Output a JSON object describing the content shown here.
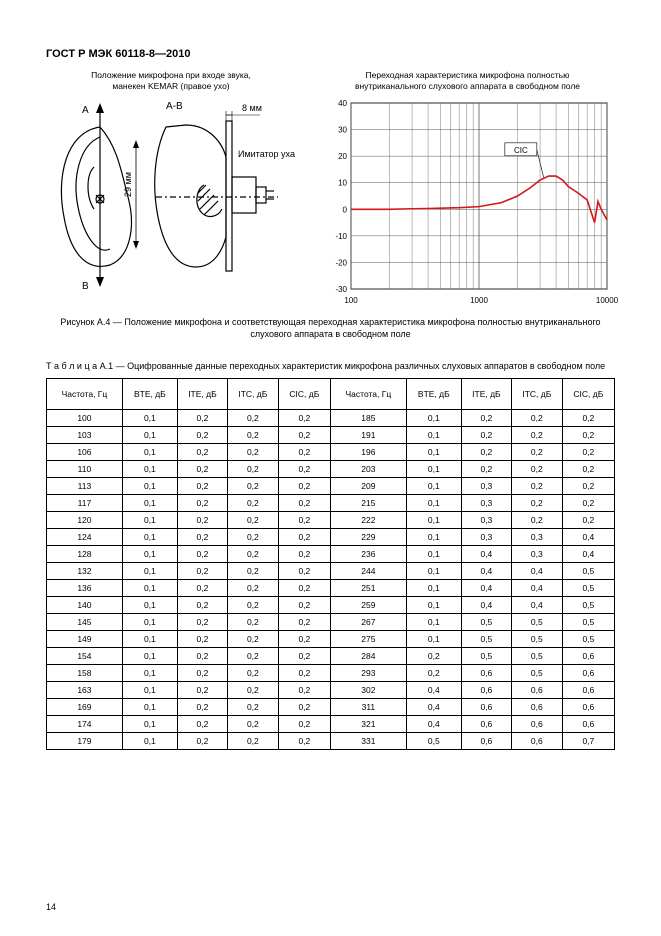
{
  "doc_title": "ГОСТ Р МЭК 60118-8—2010",
  "page_number": "14",
  "left_fig": {
    "caption_line1": "Положение микрофона при входе звука,",
    "caption_line2": "манекен KEMAR (правое ухо)",
    "label_A": "A",
    "label_B": "B",
    "label_AB": "A-B",
    "label_8mm": "8 мм",
    "label_29mm": "29 мм",
    "label_imitator": "Имитатор уха"
  },
  "right_fig": {
    "caption_line1": "Переходная характеристика микрофона полностью",
    "caption_line2": "внутриканального слухового аппарата в свободном поле",
    "cic_label": "CIC",
    "x_min": 100,
    "x_max": 10000,
    "y_min": -30,
    "y_max": 40,
    "y_ticks": [
      40,
      30,
      20,
      10,
      0,
      -10,
      -20,
      -30
    ],
    "x_ticks": [
      100,
      1000,
      10000
    ],
    "grid_color": "#555555",
    "series_color": "#d31717",
    "series": [
      [
        100,
        0
      ],
      [
        150,
        0
      ],
      [
        200,
        0
      ],
      [
        300,
        0.2
      ],
      [
        400,
        0.3
      ],
      [
        500,
        0.4
      ],
      [
        700,
        0.6
      ],
      [
        1000,
        1
      ],
      [
        1500,
        2.5
      ],
      [
        2000,
        5
      ],
      [
        2500,
        8
      ],
      [
        3000,
        11
      ],
      [
        3500,
        12.5
      ],
      [
        4000,
        12.5
      ],
      [
        4500,
        11
      ],
      [
        5000,
        8.5
      ],
      [
        6000,
        6
      ],
      [
        7000,
        3.5
      ],
      [
        8000,
        -5
      ],
      [
        8500,
        3
      ],
      [
        9000,
        0
      ],
      [
        9500,
        -2
      ],
      [
        10000,
        -4
      ]
    ]
  },
  "figure_caption": "Рисунок А.4 — Положение микрофона и соответствующая переходная характеристика микрофона полностью внутриканального слухового аппарата в свободном поле",
  "table_caption": "Т а б л и ц а   А.1 — Оцифрованные данные переходных характеристик микрофона различных слуховых аппаратов в свободном поле",
  "columns": [
    "Частота, Гц",
    "BTE, дБ",
    "ITE, дБ",
    "ITC, дБ",
    "CIC, дБ",
    "Частота, Гц",
    "BTE, дБ",
    "ITE, дБ",
    "ITC, дБ",
    "CIC, дБ"
  ],
  "rows": [
    [
      "100",
      "0,1",
      "0,2",
      "0,2",
      "0,2",
      "185",
      "0,1",
      "0,2",
      "0,2",
      "0,2"
    ],
    [
      "103",
      "0,1",
      "0,2",
      "0,2",
      "0,2",
      "191",
      "0,1",
      "0,2",
      "0,2",
      "0,2"
    ],
    [
      "106",
      "0,1",
      "0,2",
      "0,2",
      "0,2",
      "196",
      "0,1",
      "0,2",
      "0,2",
      "0,2"
    ],
    [
      "110",
      "0,1",
      "0,2",
      "0,2",
      "0,2",
      "203",
      "0,1",
      "0,2",
      "0,2",
      "0,2"
    ],
    [
      "113",
      "0,1",
      "0,2",
      "0,2",
      "0,2",
      "209",
      "0,1",
      "0,3",
      "0,2",
      "0,2"
    ],
    [
      "117",
      "0,1",
      "0,2",
      "0,2",
      "0,2",
      "215",
      "0,1",
      "0,3",
      "0,2",
      "0,2"
    ],
    [
      "120",
      "0,1",
      "0,2",
      "0,2",
      "0,2",
      "222",
      "0,1",
      "0,3",
      "0,2",
      "0,2"
    ],
    [
      "124",
      "0,1",
      "0,2",
      "0,2",
      "0,2",
      "229",
      "0,1",
      "0,3",
      "0,3",
      "0,4"
    ],
    [
      "128",
      "0,1",
      "0,2",
      "0,2",
      "0,2",
      "236",
      "0,1",
      "0,4",
      "0,3",
      "0,4"
    ],
    [
      "132",
      "0,1",
      "0,2",
      "0,2",
      "0,2",
      "244",
      "0,1",
      "0,4",
      "0,4",
      "0,5"
    ],
    [
      "136",
      "0,1",
      "0,2",
      "0,2",
      "0,2",
      "251",
      "0,1",
      "0,4",
      "0,4",
      "0,5"
    ],
    [
      "140",
      "0,1",
      "0,2",
      "0,2",
      "0,2",
      "259",
      "0,1",
      "0,4",
      "0,4",
      "0,5"
    ],
    [
      "145",
      "0,1",
      "0,2",
      "0,2",
      "0,2",
      "267",
      "0,1",
      "0,5",
      "0,5",
      "0,5"
    ],
    [
      "149",
      "0,1",
      "0,2",
      "0,2",
      "0,2",
      "275",
      "0,1",
      "0,5",
      "0,5",
      "0,5"
    ],
    [
      "154",
      "0,1",
      "0,2",
      "0,2",
      "0,2",
      "284",
      "0,2",
      "0,5",
      "0,5",
      "0,6"
    ],
    [
      "158",
      "0,1",
      "0,2",
      "0,2",
      "0,2",
      "293",
      "0,2",
      "0,6",
      "0,5",
      "0,6"
    ],
    [
      "163",
      "0,1",
      "0,2",
      "0,2",
      "0,2",
      "302",
      "0,4",
      "0,6",
      "0,6",
      "0,6"
    ],
    [
      "169",
      "0,1",
      "0,2",
      "0,2",
      "0,2",
      "311",
      "0,4",
      "0,6",
      "0,6",
      "0,6"
    ],
    [
      "174",
      "0,1",
      "0,2",
      "0,2",
      "0,2",
      "321",
      "0,4",
      "0,6",
      "0,6",
      "0,6"
    ],
    [
      "179",
      "0,1",
      "0,2",
      "0,2",
      "0,2",
      "331",
      "0,5",
      "0,6",
      "0,6",
      "0,7"
    ]
  ]
}
